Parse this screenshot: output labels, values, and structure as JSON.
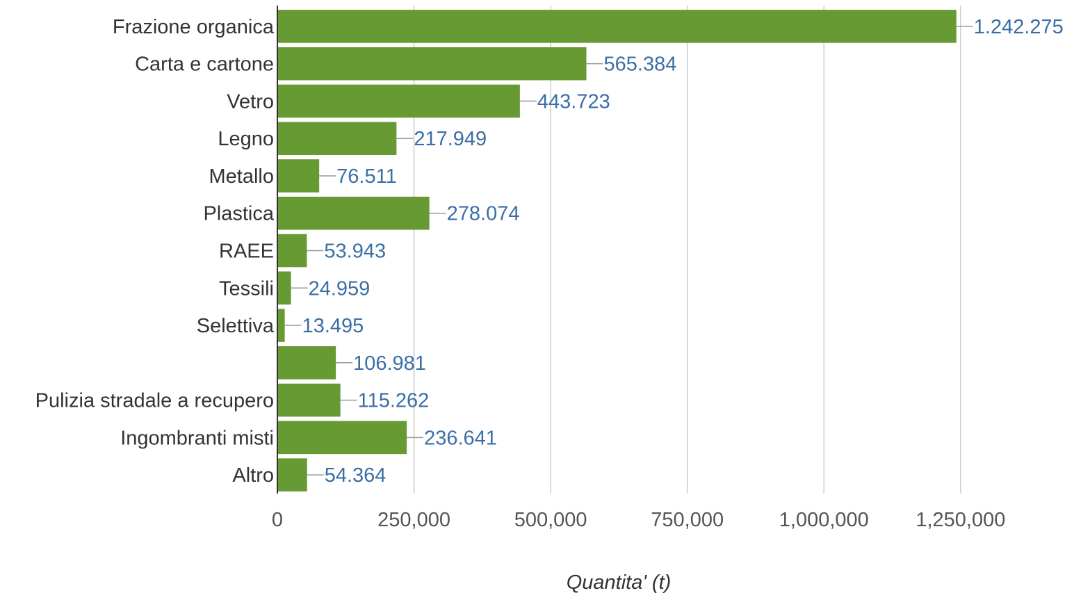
{
  "chart_data": {
    "type": "bar",
    "orientation": "horizontal",
    "categories": [
      "Frazione organica",
      "Carta e cartone",
      "Vetro",
      "Legno",
      "Metallo",
      "Plastica",
      "RAEE",
      "Tessili",
      "Selettiva",
      "",
      "Pulizia stradale a recupero",
      "Ingombranti misti",
      "Altro"
    ],
    "values": [
      1242275,
      565384,
      443723,
      217949,
      76511,
      278074,
      53943,
      24959,
      13495,
      106981,
      115262,
      236641,
      54364
    ],
    "data_labels": [
      "1.242.275",
      "565.384",
      "443.723",
      "217.949",
      "76.511",
      "278.074",
      "53.943",
      "24.959",
      "13.495",
      "106.981",
      "115.262",
      "236.641",
      "54.364"
    ],
    "xlabel": "Quantita' (t)",
    "xlim": [
      0,
      1250000
    ],
    "xticks": [
      0,
      250000,
      500000,
      750000,
      1000000,
      1250000
    ],
    "xtick_labels": [
      "0",
      "250,000",
      "500,000",
      "750,000",
      "1,000,000",
      "1,250,000"
    ],
    "grid": "vertical",
    "legend": "none",
    "colors": {
      "bar": "#689a33",
      "label": "#3a6ea5",
      "grid": "#cccccc",
      "axis": "#333333",
      "leader": "#999999"
    }
  }
}
